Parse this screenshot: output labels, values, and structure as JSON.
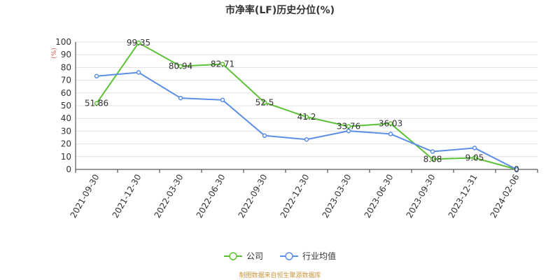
{
  "title": "市净率(LF)历史分位(%)",
  "source": "制图数据来自恒生聚源数据库",
  "chart_data": {
    "type": "line",
    "title": "市净率(LF)历史分位(%)",
    "xlabel": "",
    "ylabel": "(%)",
    "ylim": [
      0,
      100
    ],
    "yticks": [
      0,
      10,
      20,
      30,
      40,
      50,
      60,
      70,
      80,
      90,
      100
    ],
    "categories": [
      "2021-09-30",
      "2021-12-30",
      "2022-03-30",
      "2022-06-30",
      "2022-09-30",
      "2022-12-30",
      "2023-03-30",
      "2023-06-30",
      "2023-09-30",
      "2023-12-31",
      "2024-02-06"
    ],
    "grid": true,
    "legend_position": "bottom",
    "series": [
      {
        "name": "公司",
        "color": "#5dc136",
        "values": [
          51.86,
          99.35,
          80.94,
          82.71,
          52.5,
          41.2,
          33.76,
          36.03,
          8.08,
          9.05,
          0
        ],
        "labels": [
          "51.86",
          "99.35",
          "80.94",
          "82.71",
          "52.5",
          "41.2",
          "33.76",
          "36.03",
          "8.08",
          "9.05",
          "0"
        ]
      },
      {
        "name": "行业均值",
        "color": "#5b8ee6",
        "values": [
          73.2,
          76.1,
          56.0,
          54.5,
          26.5,
          23.5,
          30.2,
          27.8,
          14.0,
          16.8,
          0
        ]
      }
    ]
  }
}
